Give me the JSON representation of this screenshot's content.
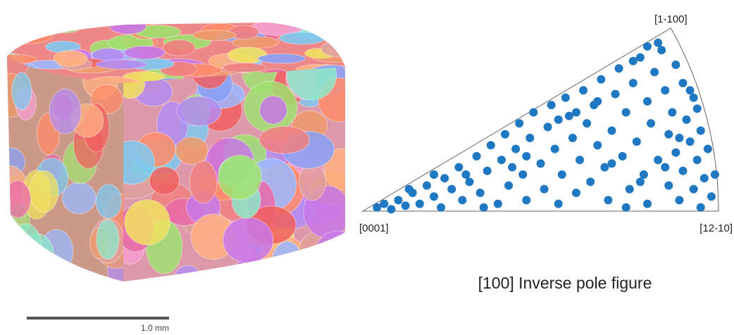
{
  "figure": {
    "scale_bar_label": "1.0 mm"
  },
  "chart_data": {
    "type": "scatter",
    "title": "[100] Inverse pole figure",
    "corner_labels": [
      "[0001]",
      "[12-10]",
      "[1-100]"
    ],
    "color": "#1f78c1",
    "xlim": [
      0,
      1
    ],
    "ylim": [
      0,
      0.5
    ],
    "x": [
      0.04,
      0.06,
      0.08,
      0.1,
      0.12,
      0.14,
      0.16,
      0.18,
      0.2,
      0.22,
      0.23,
      0.25,
      0.27,
      0.28,
      0.3,
      0.32,
      0.33,
      0.35,
      0.36,
      0.38,
      0.39,
      0.4,
      0.41,
      0.43,
      0.44,
      0.45,
      0.46,
      0.47,
      0.48,
      0.5,
      0.51,
      0.52,
      0.53,
      0.54,
      0.55,
      0.56,
      0.57,
      0.58,
      0.59,
      0.6,
      0.61,
      0.62,
      0.63,
      0.64,
      0.65,
      0.66,
      0.67,
      0.68,
      0.69,
      0.7,
      0.71,
      0.72,
      0.73,
      0.74,
      0.75,
      0.76,
      0.77,
      0.78,
      0.79,
      0.8,
      0.8,
      0.81,
      0.82,
      0.83,
      0.84,
      0.85,
      0.86,
      0.86,
      0.87,
      0.88,
      0.88,
      0.89,
      0.9,
      0.9,
      0.91,
      0.92,
      0.93,
      0.93,
      0.94,
      0.95,
      0.95,
      0.96,
      0.97,
      0.98,
      0.99,
      0.34,
      0.46,
      0.6,
      0.7,
      0.74,
      0.83,
      0.8,
      0.76,
      0.66,
      0.55,
      0.42,
      0.29,
      0.2,
      0.13,
      0.94,
      0.89,
      0.85,
      0.78,
      0.92
    ],
    "y": [
      0.01,
      0.02,
      0.005,
      0.03,
      0.015,
      0.05,
      0.02,
      0.07,
      0.04,
      0.01,
      0.09,
      0.06,
      0.12,
      0.03,
      0.08,
      0.15,
      0.05,
      0.11,
      0.18,
      0.02,
      0.14,
      0.21,
      0.07,
      0.17,
      0.24,
      0.1,
      0.03,
      0.2,
      0.27,
      0.13,
      0.06,
      0.23,
      0.29,
      0.17,
      0.02,
      0.1,
      0.31,
      0.26,
      0.2,
      0.05,
      0.14,
      0.33,
      0.24,
      0.08,
      0.29,
      0.18,
      0.36,
      0.12,
      0.03,
      0.22,
      0.32,
      0.39,
      0.15,
      0.27,
      0.06,
      0.35,
      0.19,
      0.42,
      0.1,
      0.3,
      0.02,
      0.24,
      0.38,
      0.14,
      0.44,
      0.33,
      0.07,
      0.21,
      0.27,
      0.16,
      0.4,
      0.03,
      0.11,
      0.35,
      0.25,
      0.19,
      0.06,
      0.31,
      0.14,
      0.01,
      0.22,
      0.09,
      0.17,
      0.04,
      0.1,
      0.01,
      0.15,
      0.27,
      0.13,
      0.01,
      0.46,
      0.45,
      0.41,
      0.3,
      0.25,
      0.12,
      0.1,
      0.1,
      0.06,
      0.28,
      0.2,
      0.12,
      0.08,
      0.33
    ]
  }
}
